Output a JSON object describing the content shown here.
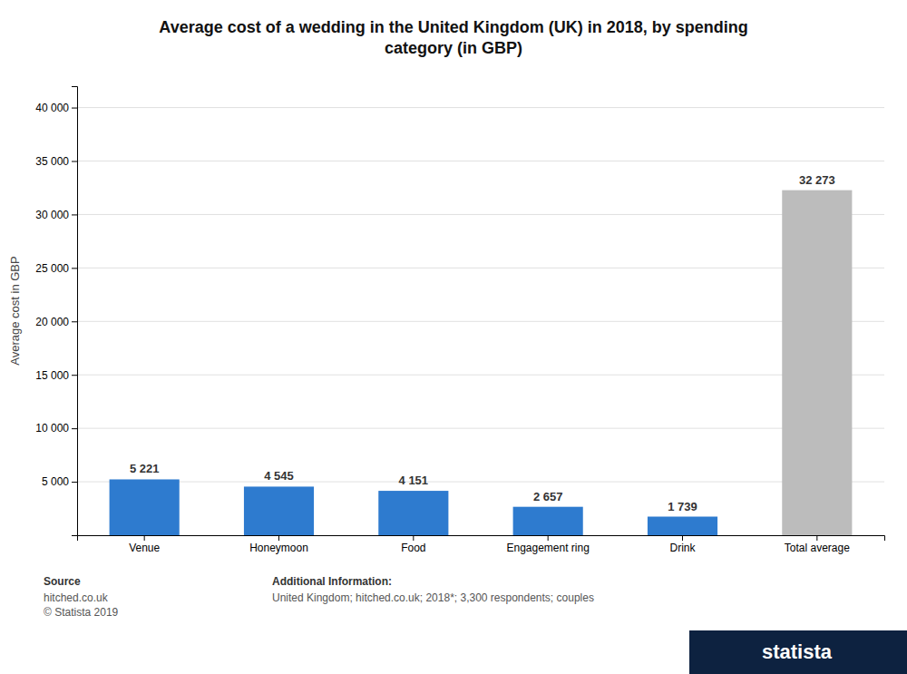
{
  "chart_data": {
    "type": "bar",
    "title": "Average cost of a wedding in the United Kingdom (UK) in 2018, by spending\ncategory (in GBP)",
    "categories": [
      "Venue",
      "Honeymoon",
      "Food",
      "Engagement ring",
      "Drink",
      "Total average"
    ],
    "values": [
      5221,
      4545,
      4151,
      2657,
      1739,
      32273
    ],
    "value_labels": [
      "5 221",
      "4 545",
      "4 151",
      "2 657",
      "1 739",
      "32 273"
    ],
    "data_labels": true,
    "colors": [
      "#2e7bcf",
      "#2e7bcf",
      "#2e7bcf",
      "#2e7bcf",
      "#2e7bcf",
      "#bcbcbc"
    ],
    "ylabel": "Average cost in GBP",
    "ylim": [
      0,
      42000
    ],
    "yticks": [
      {
        "value": 5000,
        "label": "5 000"
      },
      {
        "value": 10000,
        "label": "10 000"
      },
      {
        "value": 15000,
        "label": "15 000"
      },
      {
        "value": 20000,
        "label": "20 000"
      },
      {
        "value": 25000,
        "label": "25 000"
      },
      {
        "value": 30000,
        "label": "30 000"
      },
      {
        "value": 35000,
        "label": "35 000"
      },
      {
        "value": 40000,
        "label": "40 000"
      }
    ],
    "grid": true,
    "annotations": [
      "Source",
      "hitched.co.uk\n© Statista 2019",
      "Additional Information:",
      "United Kingdom; hitched.co.uk; 2018*; 3,300 respondents; couples",
      "statista"
    ]
  }
}
